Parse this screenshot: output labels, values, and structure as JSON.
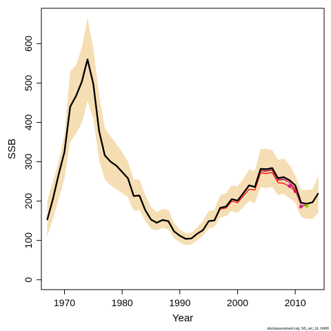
{
  "chart_data": {
    "type": "line",
    "title": "",
    "xlabel": "Year",
    "ylabel": "SSB",
    "xlim": [
      1966,
      2015
    ],
    "ylim": [
      -25,
      690
    ],
    "xticks": [
      1970,
      1980,
      1990,
      2000,
      2010
    ],
    "yticks": [
      0,
      100,
      200,
      300,
      400,
      500,
      600
    ],
    "grid": false,
    "legend": "none",
    "credit": "stockassessment.org, NS_sel_1d, r9436",
    "colors": {
      "band": "#f5deb3",
      "main_line": "#000000",
      "retro_line_a": "#ff0000",
      "retro_line_b": "#ff69b4",
      "retro_line_c": "#8b0000",
      "point_magenta": "#e0198c",
      "point_red": "#d2145a",
      "point_green": "#8fce00"
    },
    "confidence_band": {
      "x": [
        1967,
        1968,
        1969,
        1970,
        1971,
        1972,
        1973,
        1974,
        1975,
        1976,
        1977,
        1978,
        1979,
        1980,
        1981,
        1982,
        1983,
        1984,
        1985,
        1986,
        1987,
        1988,
        1989,
        1990,
        1991,
        1992,
        1993,
        1994,
        1995,
        1996,
        1997,
        1998,
        1999,
        2000,
        2001,
        2002,
        2003,
        2004,
        2005,
        2006,
        2007,
        2008,
        2009,
        2010,
        2011,
        2012,
        2013,
        2014
      ],
      "lower": [
        110,
        155,
        205,
        258,
        350,
        372,
        398,
        455,
        410,
        305,
        255,
        240,
        230,
        220,
        210,
        175,
        178,
        150,
        130,
        125,
        132,
        128,
        105,
        95,
        88,
        90,
        100,
        112,
        130,
        135,
        158,
        162,
        175,
        170,
        185,
        200,
        195,
        235,
        233,
        236,
        215,
        218,
        208,
        195,
        160,
        155,
        155,
        170
      ],
      "upper": [
        200,
        250,
        300,
        370,
        530,
        545,
        590,
        665,
        590,
        470,
        385,
        365,
        345,
        325,
        300,
        255,
        255,
        215,
        185,
        172,
        180,
        178,
        145,
        128,
        118,
        120,
        133,
        150,
        175,
        178,
        215,
        220,
        240,
        237,
        257,
        280,
        277,
        332,
        333,
        330,
        305,
        308,
        292,
        265,
        228,
        228,
        230,
        265
      ]
    },
    "series": [
      {
        "x": [
          1967,
          1968,
          1969,
          1970,
          1971,
          1972,
          1973,
          1974,
          1975,
          1976,
          1977,
          1978,
          1979,
          1980,
          1981,
          1982,
          1983,
          1984,
          1985,
          1986,
          1987,
          1988,
          1989,
          1990,
          1991,
          1992,
          1993,
          1994,
          1995,
          1996,
          1997,
          1998,
          1999,
          2000,
          2001,
          2002,
          2003,
          2004,
          2005,
          2006,
          2007,
          2008,
          2009,
          2010,
          2011,
          2012,
          2013,
          2014
        ],
        "y": [
          152,
          205,
          268,
          325,
          440,
          467,
          503,
          560,
          498,
          378,
          316,
          300,
          290,
          274,
          258,
          213,
          214,
          177,
          153,
          145,
          152,
          149,
          123,
          112,
          104,
          105,
          117,
          126,
          149,
          151,
          183,
          186,
          205,
          201,
          220,
          240,
          236,
          282,
          281,
          284,
          258,
          261,
          253,
          240,
          196,
          193,
          197,
          220
        ],
        "color": "#000000"
      },
      {
        "x": [
          1967,
          1968,
          1969,
          1970,
          1971,
          1972,
          1973,
          1974,
          1975,
          1976,
          1977,
          1978,
          1979,
          1980,
          1981,
          1982,
          1983,
          1984,
          1985,
          1986,
          1987,
          1988,
          1989,
          1990,
          1991,
          1992,
          1993,
          1994,
          1995,
          1996,
          1997,
          1998,
          1999,
          2000,
          2001,
          2002,
          2003,
          2004,
          2005,
          2006,
          2007,
          2008,
          2009,
          2010,
          2011
        ],
        "y": [
          152,
          205,
          268,
          325,
          440,
          467,
          503,
          560,
          498,
          378,
          316,
          300,
          290,
          274,
          258,
          213,
          214,
          177,
          153,
          145,
          152,
          149,
          123,
          112,
          104,
          105,
          117,
          126,
          149,
          151,
          183,
          186,
          205,
          201,
          220,
          240,
          236,
          280,
          279,
          281,
          255,
          257,
          248,
          233,
          187
        ],
        "color": "#ff69b4"
      },
      {
        "x": [
          1967,
          1968,
          1969,
          1970,
          1971,
          1972,
          1973,
          1974,
          1975,
          1976,
          1977,
          1978,
          1979,
          1980,
          1981,
          1982,
          1983,
          1984,
          1985,
          1986,
          1987,
          1988,
          1989,
          1990,
          1991,
          1992,
          1993,
          1994,
          1995,
          1996,
          1997,
          1998,
          1999,
          2000,
          2001,
          2002,
          2003,
          2004,
          2005,
          2006,
          2007,
          2008,
          2009,
          2010,
          2011,
          2012
        ],
        "y": [
          152,
          205,
          268,
          325,
          440,
          467,
          503,
          560,
          498,
          378,
          316,
          300,
          290,
          274,
          258,
          213,
          214,
          177,
          153,
          145,
          152,
          149,
          123,
          112,
          104,
          105,
          117,
          126,
          149,
          151,
          183,
          186,
          205,
          201,
          220,
          240,
          236,
          277,
          276,
          279,
          253,
          255,
          247,
          228,
          188,
          190
        ],
        "color": "#8b0000"
      },
      {
        "x": [
          1967,
          1968,
          1969,
          1970,
          1971,
          1972,
          1973,
          1974,
          1975,
          1976,
          1977,
          1978,
          1979,
          1980,
          1981,
          1982,
          1983,
          1984,
          1985,
          1986,
          1987,
          1988,
          1989,
          1990,
          1991,
          1992,
          1993,
          1994,
          1995,
          1996,
          1997,
          1998,
          1999,
          2000,
          2001,
          2002,
          2003,
          2004,
          2005,
          2006,
          2007,
          2008,
          2009,
          2010
        ],
        "y": [
          152,
          205,
          268,
          325,
          440,
          467,
          503,
          560,
          498,
          378,
          316,
          300,
          290,
          274,
          258,
          213,
          214,
          177,
          153,
          145,
          152,
          149,
          123,
          112,
          104,
          105,
          117,
          126,
          149,
          151,
          180,
          182,
          200,
          196,
          213,
          230,
          228,
          272,
          270,
          273,
          247,
          245,
          238,
          225
        ],
        "color": "#ff0000"
      }
    ],
    "points": [
      {
        "x": 2009,
        "y": 238,
        "color": "#e0198c"
      },
      {
        "x": 2010,
        "y": 225,
        "color": "#d2145a"
      },
      {
        "x": 2011,
        "y": 186,
        "color": "#e0198c"
      },
      {
        "x": 2012,
        "y": 188,
        "color": "#8fce00"
      }
    ]
  }
}
